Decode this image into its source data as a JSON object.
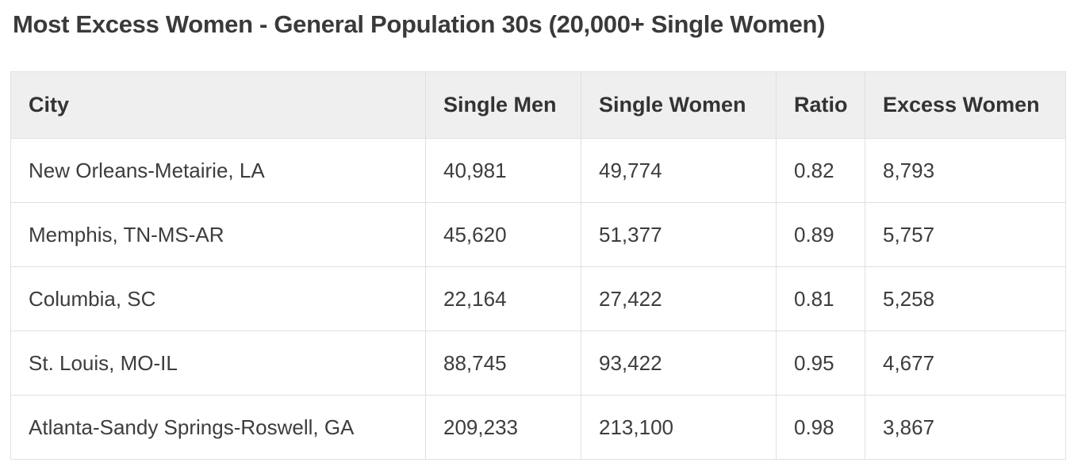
{
  "page": {
    "title": "Most Excess Women - General Population 30s (20,000+ Single Women)"
  },
  "colors": {
    "page_background": "#ffffff",
    "header_row_background": "#efefef",
    "table_border": "#e0e0e0",
    "title_text": "#3a3a3a",
    "cell_text": "#3d3d3d"
  },
  "chart_data": {
    "type": "table",
    "title": "Most Excess Women - General Population 30s (20,000+ Single Women)",
    "columns": [
      "City",
      "Single Men",
      "Single Women",
      "Ratio",
      "Excess Women"
    ],
    "rows": [
      [
        "New Orleans-Metairie, LA",
        "40,981",
        "49,774",
        "0.82",
        "8,793"
      ],
      [
        "Memphis, TN-MS-AR",
        "45,620",
        "51,377",
        "0.89",
        "5,757"
      ],
      [
        "Columbia, SC",
        "22,164",
        "27,422",
        "0.81",
        "5,258"
      ],
      [
        "St. Louis, MO-IL",
        "88,745",
        "93,422",
        "0.95",
        "4,677"
      ],
      [
        "Atlanta-Sandy Springs-Roswell, GA",
        "209,233",
        "213,100",
        "0.98",
        "3,867"
      ]
    ]
  }
}
